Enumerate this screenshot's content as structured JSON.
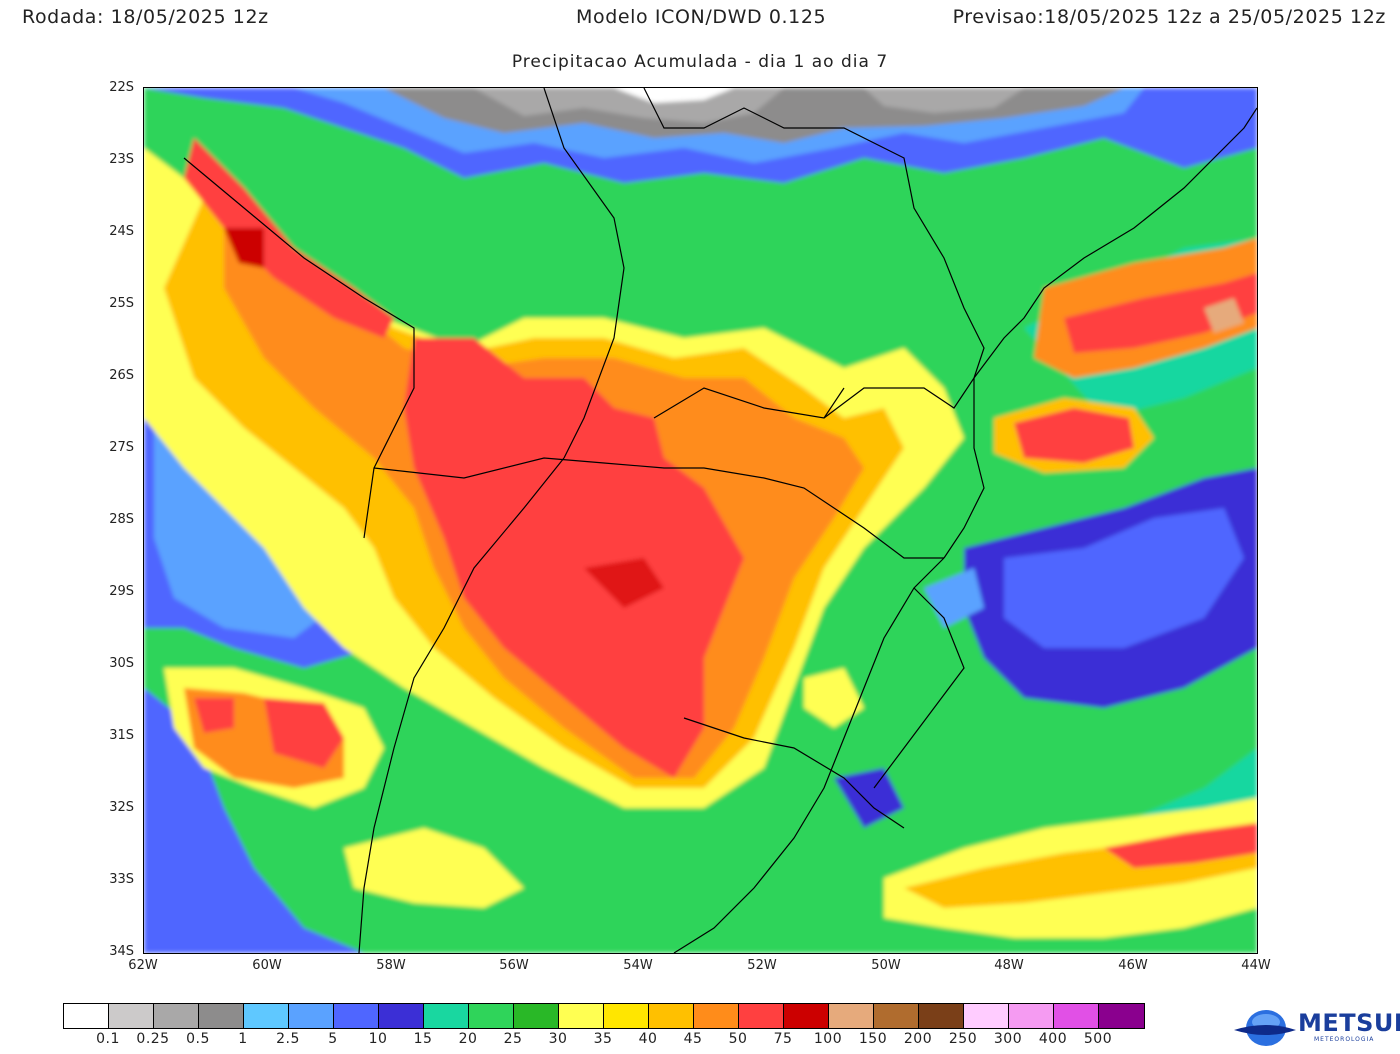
{
  "header": {
    "run_label": "Rodada:",
    "run_value": "18/05/2025 12z",
    "model": "Modelo ICON/DWD 0.125",
    "forecast_label": "Previsao:",
    "forecast_value": "18/05/2025 12z a 25/05/2025 12z"
  },
  "subtitle": "Precipitacao Acumulada - dia 1 ao dia 7",
  "lat_labels": [
    "22S",
    "23S",
    "24S",
    "25S",
    "26S",
    "27S",
    "28S",
    "29S",
    "30S",
    "31S",
    "32S",
    "33S",
    "34S"
  ],
  "lon_labels": [
    "62W",
    "60W",
    "58W",
    "56W",
    "54W",
    "52W",
    "50W",
    "48W",
    "46W",
    "44W"
  ],
  "colorbar": {
    "labels": [
      "0.1",
      "0.25",
      "0.5",
      "1",
      "2.5",
      "5",
      "10",
      "15",
      "20",
      "25",
      "30",
      "35",
      "40",
      "45",
      "50",
      "75",
      "100",
      "150",
      "200",
      "250",
      "300",
      "400",
      "500"
    ],
    "colors": [
      "#ffffff",
      "#cccaca",
      "#a9a8a8",
      "#8d8c8c",
      "#5fc8ff",
      "#5aa2ff",
      "#4f66ff",
      "#3b2fd6",
      "#19d7a0",
      "#2fd45a",
      "#29b827",
      "#ffff52",
      "#ffe600",
      "#ffc000",
      "#ff8c1a",
      "#ff4040",
      "#cc0000",
      "#e6aa7c",
      "#b06c2e",
      "#7a3f18",
      "#ffccff",
      "#f59bf2",
      "#e150e6",
      "#8a008e"
    ]
  },
  "logo": {
    "name": "METSUL",
    "tagline": "METEOROLOGIA"
  }
}
